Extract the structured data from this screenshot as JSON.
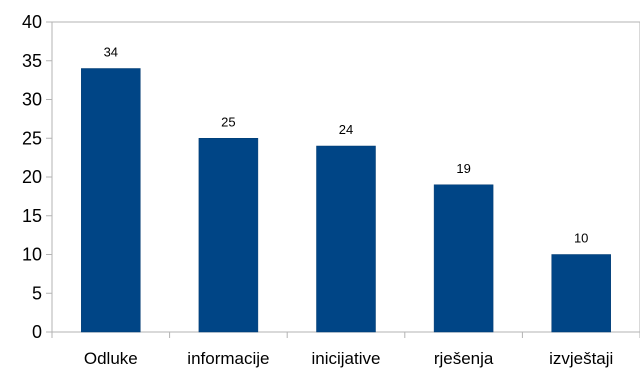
{
  "chart_data": {
    "type": "bar",
    "title": "",
    "xlabel": "",
    "ylabel": "",
    "categories": [
      "Odluke",
      "informacije",
      "inicijative",
      "rješenja",
      "izvještaji"
    ],
    "values": [
      34,
      25,
      24,
      19,
      10
    ],
    "data_labels": [
      "34",
      "25",
      "24",
      "19",
      "10"
    ],
    "ylim": [
      0,
      40
    ],
    "yticks": [
      "0",
      "5",
      "10",
      "15",
      "20",
      "25",
      "30",
      "35",
      "40"
    ],
    "grid": false,
    "legend": "none",
    "bar_color": "#004586",
    "axis_color": "#b3b3b3"
  }
}
